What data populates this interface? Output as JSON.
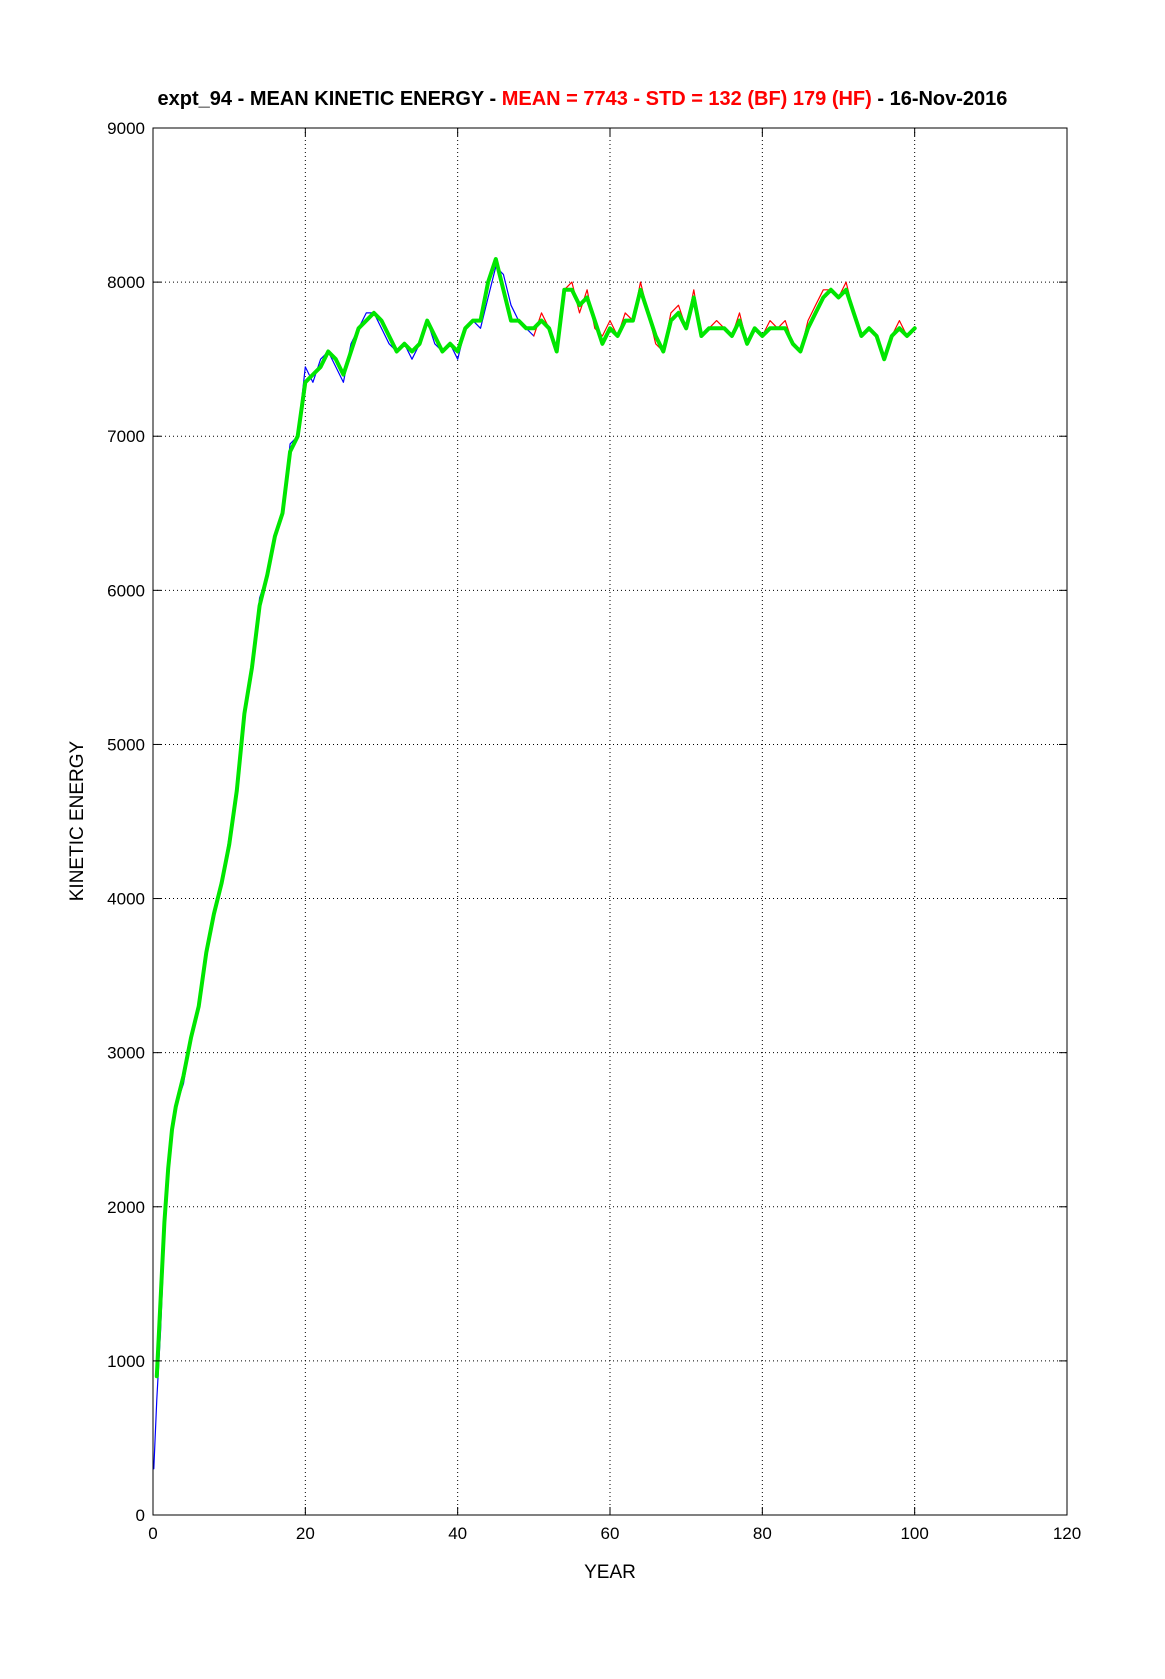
{
  "chart_data": {
    "type": "line",
    "title": {
      "prefix": "expt_94 - MEAN KINETIC ENERGY - ",
      "stats_mean": "MEAN =  7743",
      "sep1": " - ",
      "stats_std": "STD =  132 (BF)  179 (HF)",
      "suffix": " - 16-Nov-2016"
    },
    "xlabel": "YEAR",
    "ylabel": "KINETIC ENERGY",
    "xlim": [
      0,
      120
    ],
    "ylim": [
      0,
      9000
    ],
    "xticks": [
      "0",
      "20",
      "40",
      "60",
      "80",
      "100",
      "120"
    ],
    "yticks": [
      "0",
      "1000",
      "2000",
      "3000",
      "4000",
      "5000",
      "6000",
      "7000",
      "8000",
      "9000"
    ],
    "grid": true,
    "series": [
      {
        "color": "#0000ff",
        "style": "thin",
        "x": [
          0.1,
          0.5,
          1,
          1.5,
          2,
          2.5,
          3,
          4,
          5,
          6,
          7,
          8,
          9,
          10,
          11,
          12,
          13,
          14,
          15,
          16,
          17,
          18,
          19,
          20,
          21,
          22,
          23,
          24,
          25,
          26,
          27,
          28,
          29,
          30,
          31,
          32,
          33,
          34,
          35,
          36,
          37,
          38,
          39,
          40,
          41,
          42,
          43,
          44,
          45,
          46,
          47,
          48,
          49,
          50
        ],
        "y": [
          300,
          750,
          1200,
          1800,
          2200,
          2500,
          2650,
          2800,
          3100,
          3300,
          3650,
          3900,
          4100,
          4400,
          4700,
          5200,
          5500,
          5950,
          6100,
          6350,
          6500,
          6950,
          7000,
          7450,
          7350,
          7500,
          7550,
          7450,
          7350,
          7600,
          7700,
          7800,
          7800,
          7700,
          7600,
          7550,
          7600,
          7500,
          7600,
          7750,
          7600,
          7550,
          7600,
          7500,
          7700,
          7750,
          7700,
          7900,
          8100,
          8050,
          7850,
          7750,
          7700,
          7650
        ]
      },
      {
        "color": "#ff0000",
        "style": "thin",
        "x": [
          50,
          51,
          52,
          53,
          54,
          55,
          56,
          57,
          58,
          59,
          60,
          61,
          62,
          63,
          64,
          65,
          66,
          67,
          68,
          69,
          70,
          71,
          72,
          73,
          74,
          75,
          76,
          77,
          78,
          79,
          80,
          81,
          82,
          83,
          84,
          85,
          86,
          87,
          88,
          89,
          90,
          91,
          92,
          93,
          94,
          95,
          96,
          97,
          98,
          99,
          100
        ],
        "y": [
          7650,
          7800,
          7700,
          7550,
          7950,
          8000,
          7800,
          7950,
          7700,
          7650,
          7750,
          7650,
          7800,
          7750,
          8000,
          7800,
          7600,
          7550,
          7800,
          7850,
          7700,
          7950,
          7650,
          7700,
          7750,
          7700,
          7650,
          7800,
          7600,
          7700,
          7650,
          7750,
          7700,
          7750,
          7600,
          7550,
          7750,
          7850,
          7950,
          7950,
          7900,
          8000,
          7800,
          7650,
          7700,
          7650,
          7500,
          7650,
          7750,
          7650,
          7700
        ]
      },
      {
        "color": "#00e600",
        "style": "thick",
        "x": [
          0.5,
          1,
          1.5,
          2,
          2.5,
          3,
          4,
          5,
          6,
          7,
          8,
          9,
          10,
          11,
          12,
          13,
          14,
          15,
          16,
          17,
          18,
          19,
          20,
          21,
          22,
          23,
          24,
          25,
          26,
          27,
          28,
          29,
          30,
          31,
          32,
          33,
          34,
          35,
          36,
          37,
          38,
          39,
          40,
          41,
          42,
          43,
          44,
          45,
          46,
          47,
          48,
          49,
          50,
          51,
          52,
          53,
          54,
          55,
          56,
          57,
          58,
          59,
          60,
          61,
          62,
          63,
          64,
          65,
          66,
          67,
          68,
          69,
          70,
          71,
          72,
          73,
          74,
          75,
          76,
          77,
          78,
          79,
          80,
          81,
          82,
          83,
          84,
          85,
          86,
          87,
          88,
          89,
          90,
          91,
          92,
          93,
          94,
          95,
          96,
          97,
          98,
          99,
          100
        ],
        "y": [
          900,
          1400,
          1900,
          2250,
          2500,
          2650,
          2850,
          3100,
          3300,
          3650,
          3900,
          4100,
          4350,
          4700,
          5200,
          5500,
          5900,
          6100,
          6350,
          6500,
          6900,
          7000,
          7350,
          7400,
          7450,
          7550,
          7500,
          7400,
          7550,
          7700,
          7750,
          7800,
          7750,
          7650,
          7550,
          7600,
          7550,
          7600,
          7750,
          7650,
          7550,
          7600,
          7550,
          7700,
          7750,
          7750,
          8000,
          8150,
          7950,
          7750,
          7750,
          7700,
          7700,
          7750,
          7700,
          7550,
          7950,
          7950,
          7850,
          7900,
          7750,
          7600,
          7700,
          7650,
          7750,
          7750,
          7950,
          7800,
          7650,
          7550,
          7750,
          7800,
          7700,
          7900,
          7650,
          7700,
          7700,
          7700,
          7650,
          7750,
          7600,
          7700,
          7650,
          7700,
          7700,
          7700,
          7600,
          7550,
          7700,
          7800,
          7900,
          7950,
          7900,
          7950,
          7800,
          7650,
          7700,
          7650,
          7500,
          7650,
          7700,
          7650,
          7700
        ]
      }
    ]
  }
}
